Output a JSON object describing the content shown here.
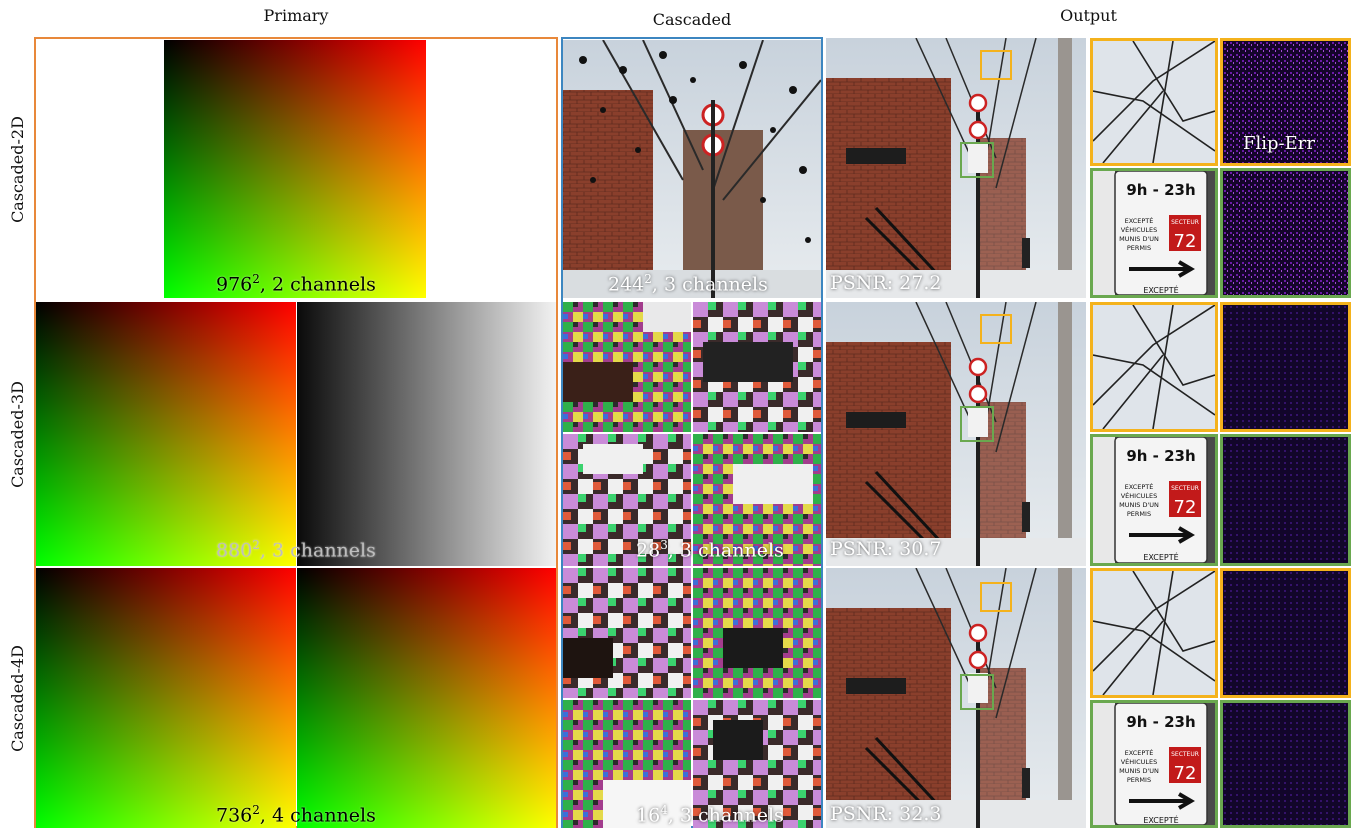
{
  "headers": {
    "primary": "Primary",
    "cascaded": "Cascaded",
    "output": "Output"
  },
  "rows": [
    {
      "label": "Cascaded-2D",
      "primary_res": "976",
      "primary_exp": "2",
      "primary_rest": ", 2 channels",
      "cascaded_res": "244",
      "cascaded_exp": "2",
      "cascaded_rest": ", 3 channels",
      "psnr": "PSNR: 27.2",
      "flip_label": "Flip-Err"
    },
    {
      "label": "Cascaded-3D",
      "primary_res": "880",
      "primary_exp": "2",
      "primary_rest": ", 3 channels",
      "cascaded_res": "28",
      "cascaded_exp": "3",
      "cascaded_rest": ", 3 channels",
      "psnr": "PSNR: 30.7"
    },
    {
      "label": "Cascaded-4D",
      "primary_res": "736",
      "primary_exp": "2",
      "primary_rest": ", 4 channels",
      "cascaded_res": "16",
      "cascaded_exp": "4",
      "cascaded_rest": ", 3 channels",
      "psnr": "PSNR: 32.3"
    }
  ],
  "sign_text": {
    "time": "9h - 23h",
    "line1": "EXCEPTÉ",
    "line2": "VÉHICULES",
    "line3": "MUNIS D'UN",
    "line4": "PERMIS",
    "secteur": "SECTEUR",
    "num": "72",
    "bottom": "EXCEPTÉ"
  },
  "colors": {
    "primary_frame": "#e8883a",
    "cascaded_frame": "#3c86c0",
    "crop_yellow": "#f4b21c",
    "crop_green": "#6aa84f"
  }
}
